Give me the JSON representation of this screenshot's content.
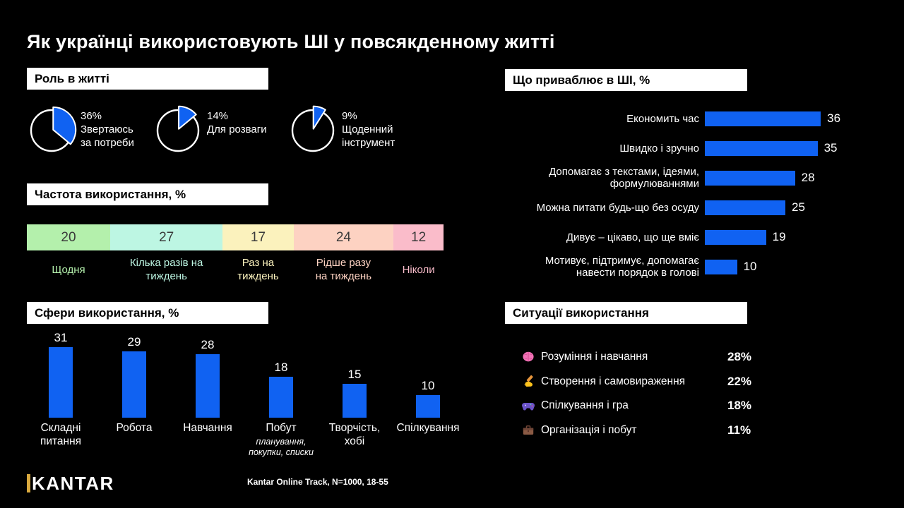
{
  "title": "Як українці використовують ШІ у повсякденному житті",
  "colors": {
    "blue": "#1062F2",
    "gold": "#D9A93E"
  },
  "role": {
    "header": "Роль в житті",
    "pies": [
      {
        "pct": 36,
        "pct_label": "36%",
        "label": "Звертаюсь\nза потреби"
      },
      {
        "pct": 14,
        "pct_label": "14%",
        "label": "Для розваги"
      },
      {
        "pct": 9,
        "pct_label": "9%",
        "label": "Щоденний\nінструмент"
      }
    ]
  },
  "frequency": {
    "header": "Частота використання, %",
    "segments": [
      {
        "value": 20,
        "label": "Щодня",
        "color": "#B4F0AC"
      },
      {
        "value": 27,
        "label": "Кілька разів на\nтиждень",
        "color": "#BDF6E3"
      },
      {
        "value": 17,
        "label": "Раз на\nтиждень",
        "color": "#FBF2BD"
      },
      {
        "value": 24,
        "label": "Рідше разу\nна тиждень",
        "color": "#FDD2C2"
      },
      {
        "value": 12,
        "label": "Ніколи",
        "color": "#FABCCA"
      }
    ]
  },
  "spheres": {
    "header": "Сфери використання, %",
    "bars": [
      {
        "value": 31,
        "label": "Складні\nпитання"
      },
      {
        "value": 29,
        "label": "Робота"
      },
      {
        "value": 28,
        "label": "Навчання"
      },
      {
        "value": 18,
        "label": "Побут",
        "sublabel": "планування,\nпокупки, списки"
      },
      {
        "value": 15,
        "label": "Творчість,\nхобі"
      },
      {
        "value": 10,
        "label": "Спілкування"
      }
    ]
  },
  "attracts": {
    "header": "Що приваблює в ШІ, %",
    "bars": [
      {
        "value": 36,
        "label": "Економить час"
      },
      {
        "value": 35,
        "label": "Швидко і зручно"
      },
      {
        "value": 28,
        "label": "Допомагає з текстами, ідеями,\nформулюваннями"
      },
      {
        "value": 25,
        "label": "Можна питати будь-що без осуду"
      },
      {
        "value": 19,
        "label": "Дивує – цікаво, що ще вміє"
      },
      {
        "value": 10,
        "label": "Мотивує, підтримує, допомагає\nнавести порядок в голові"
      }
    ]
  },
  "situations": {
    "header": "Ситуації використання",
    "items": [
      {
        "icon": "brain-icon",
        "label": "Розуміння і навчання",
        "pct": "28%"
      },
      {
        "icon": "writing-hand-icon",
        "label": "Створення і самовираження",
        "pct": "22%"
      },
      {
        "icon": "game-controller-icon",
        "label": "Спілкування і гра",
        "pct": "18%"
      },
      {
        "icon": "briefcase-icon",
        "label": "Організація і побут",
        "pct": "11%"
      }
    ]
  },
  "footer": {
    "logo": "KANTAR",
    "source": "Kantar Online Track, N=1000, 18-55"
  },
  "chart_data": [
    {
      "type": "pie",
      "title": "Роль в житті",
      "series": [
        {
          "name": "Звертаюсь за потреби",
          "value": 36
        },
        {
          "name": "Для розваги",
          "value": 14
        },
        {
          "name": "Щоденний інструмент",
          "value": 9
        }
      ],
      "unit": "%"
    },
    {
      "type": "bar",
      "subtype": "horizontal-stacked",
      "title": "Частота використання, %",
      "categories": [
        "Щодня",
        "Кілька разів на тиждень",
        "Раз на тиждень",
        "Рідше разу на тиждень",
        "Ніколи"
      ],
      "values": [
        20,
        27,
        17,
        24,
        12
      ]
    },
    {
      "type": "bar",
      "subtype": "vertical",
      "title": "Сфери використання, %",
      "categories": [
        "Складні питання",
        "Робота",
        "Навчання",
        "Побут (планування, покупки, списки)",
        "Творчість, хобі",
        "Спілкування"
      ],
      "values": [
        31,
        29,
        28,
        18,
        15,
        10
      ]
    },
    {
      "type": "bar",
      "subtype": "horizontal",
      "title": "Що приваблює в ШІ, %",
      "categories": [
        "Економить час",
        "Швидко і зручно",
        "Допомагає з текстами, ідеями, формулюваннями",
        "Можна питати будь-що без осуду",
        "Дивує – цікаво, що ще вміє",
        "Мотивує, підтримує, допомагає навести порядок в голові"
      ],
      "values": [
        36,
        35,
        28,
        25,
        19,
        10
      ]
    },
    {
      "type": "table",
      "title": "Ситуації використання",
      "categories": [
        "Розуміння і навчання",
        "Створення і самовираження",
        "Спілкування і гра",
        "Організація і побут"
      ],
      "values": [
        28,
        22,
        18,
        11
      ],
      "unit": "%"
    }
  ]
}
